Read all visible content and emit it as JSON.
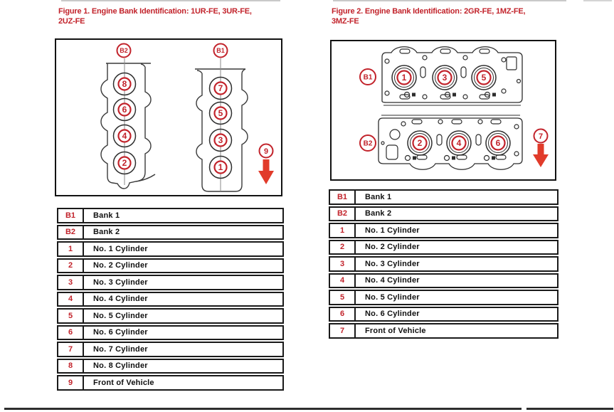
{
  "colors": {
    "red": "#c2232b",
    "arrow_red": "#e13b2a",
    "line_dark": "#2f2f2f"
  },
  "figure1": {
    "title_lines": [
      "Figure 1. Engine Bank Identification: 1UR-FE, 3UR-FE,",
      "2UZ-FE"
    ],
    "diagram": {
      "bank_labels": [
        "B2",
        "B1"
      ],
      "bank_b2_cylinders": [
        "8",
        "6",
        "4",
        "2"
      ],
      "bank_b1_cylinders": [
        "7",
        "5",
        "3",
        "1"
      ],
      "front_of_vehicle_marker": "9"
    },
    "legend": [
      {
        "key": "B1",
        "label": "Bank 1"
      },
      {
        "key": "B2",
        "label": "Bank 2"
      },
      {
        "key": "1",
        "label": "No. 1 Cylinder"
      },
      {
        "key": "2",
        "label": "No. 2 Cylinder"
      },
      {
        "key": "3",
        "label": "No. 3 Cylinder"
      },
      {
        "key": "4",
        "label": "No. 4 Cylinder"
      },
      {
        "key": "5",
        "label": "No. 5 Cylinder"
      },
      {
        "key": "6",
        "label": "No. 6 Cylinder"
      },
      {
        "key": "7",
        "label": "No. 7 Cylinder"
      },
      {
        "key": "8",
        "label": "No. 8 Cylinder"
      },
      {
        "key": "9",
        "label": "Front of Vehicle"
      }
    ]
  },
  "figure2": {
    "title_lines": [
      "Figure 2. Engine Bank Identification: 2GR-FE, 1MZ-FE,",
      "3MZ-FE"
    ],
    "diagram": {
      "bank_labels": [
        "B1",
        "B2"
      ],
      "bank_b1_cylinders": [
        "1",
        "3",
        "5"
      ],
      "bank_b2_cylinders": [
        "2",
        "4",
        "6"
      ],
      "front_of_vehicle_marker": "7"
    },
    "legend": [
      {
        "key": "B1",
        "label": "Bank 1"
      },
      {
        "key": "B2",
        "label": "Bank 2"
      },
      {
        "key": "1",
        "label": "No. 1 Cylinder"
      },
      {
        "key": "2",
        "label": "No. 2 Cylinder"
      },
      {
        "key": "3",
        "label": "No. 3 Cylinder"
      },
      {
        "key": "4",
        "label": "No. 4 Cylinder"
      },
      {
        "key": "5",
        "label": "No. 5 Cylinder"
      },
      {
        "key": "6",
        "label": "No. 6 Cylinder"
      },
      {
        "key": "7",
        "label": "Front of Vehicle"
      }
    ]
  }
}
